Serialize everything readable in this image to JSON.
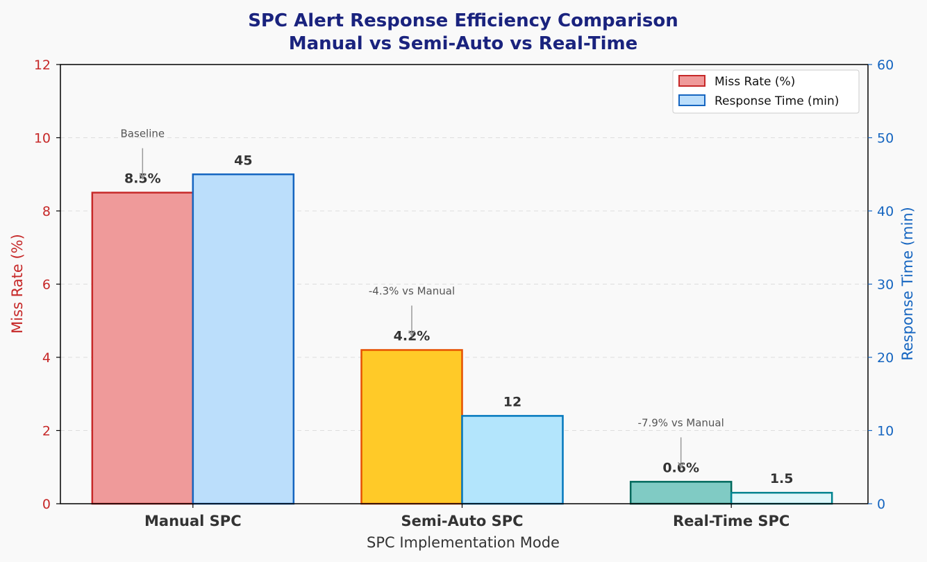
{
  "chart_data": {
    "type": "bar",
    "title_line1": "SPC Alert Response Efficiency Comparison",
    "title_line2": "Manual vs Semi-Auto vs Real-Time",
    "xlabel": "SPC Implementation Mode",
    "ylabel_left": "Miss Rate (%)",
    "ylabel_right": "Response Time (min)",
    "categories": [
      "Manual SPC",
      "Semi-Auto SPC",
      "Real-Time SPC"
    ],
    "ylim_left": [
      0,
      12
    ],
    "ylim_right": [
      0,
      60
    ],
    "yticks_left": [
      "0",
      "2",
      "4",
      "6",
      "8",
      "10",
      "12"
    ],
    "yticks_right": [
      "0",
      "10",
      "20",
      "30",
      "40",
      "50",
      "60"
    ],
    "grid": true,
    "legend_position": "top-right",
    "series": [
      {
        "name": "Miss Rate (%)",
        "axis": "left",
        "values": [
          8.5,
          4.2,
          0.6
        ],
        "labels": [
          "8.5%",
          "4.2%",
          "0.6%"
        ],
        "fill_colors": [
          "#ef9a9a",
          "#ffca28",
          "#80cbc4"
        ],
        "edge_colors": [
          "#c62828",
          "#e65100",
          "#00695c"
        ],
        "legend_fill": "#ef9a9a",
        "legend_edge": "#c62828"
      },
      {
        "name": "Response Time (min)",
        "axis": "right",
        "values": [
          45,
          12,
          1.5
        ],
        "labels": [
          "45",
          "12",
          "1.5"
        ],
        "fill_colors": [
          "#bbdefb",
          "#b3e5fc",
          "#e0f7fa"
        ],
        "edge_colors": [
          "#1565c0",
          "#0277bd",
          "#00838f"
        ],
        "legend_fill": "#bbdefb",
        "legend_edge": "#1565c0"
      }
    ],
    "annotations": [
      "Baseline",
      "-4.3% vs Manual",
      "-7.9% vs Manual"
    ]
  }
}
